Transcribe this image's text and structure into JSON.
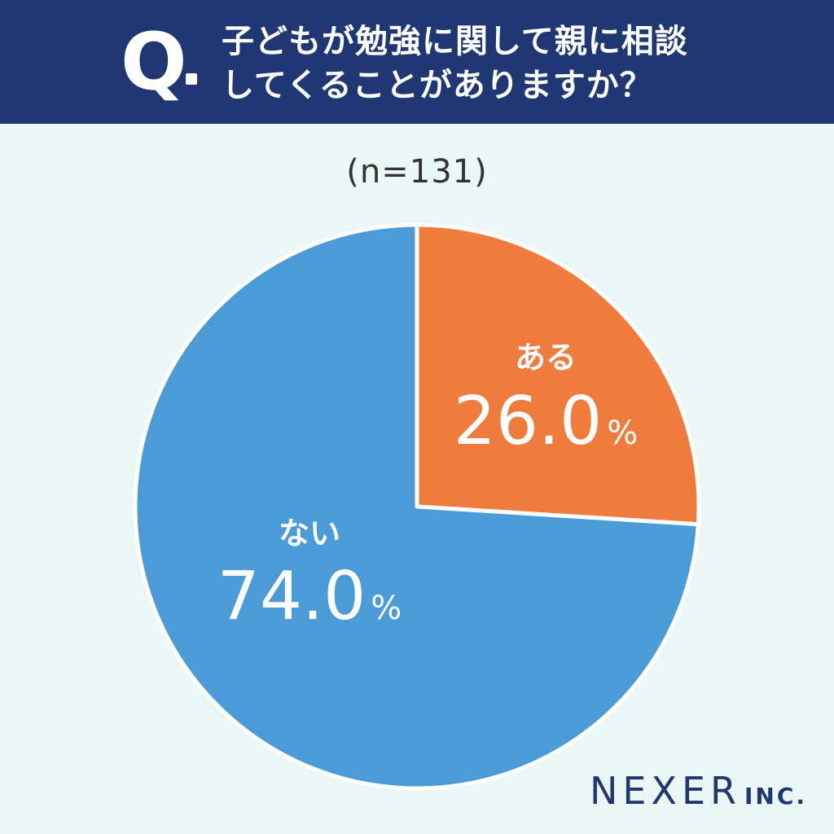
{
  "header": {
    "q_mark": "Q",
    "question_lines": [
      "子どもが勉強に関して親に相談",
      "してくることがありますか？"
    ]
  },
  "sample_size_label": "(n=131)",
  "chart_data": {
    "type": "pie",
    "start": "12 o'clock",
    "direction": "clockwise",
    "slices": [
      {
        "label": "ある",
        "value": 26.0,
        "display": "26.0",
        "unit": "%",
        "color": "#ef7b3c"
      },
      {
        "label": "ない",
        "value": 74.0,
        "display": "74.0",
        "unit": "%",
        "color": "#4a9bd8"
      }
    ],
    "separator_color": "#ffffff"
  },
  "logo": {
    "name": "NEXER",
    "suffix": "INC."
  }
}
